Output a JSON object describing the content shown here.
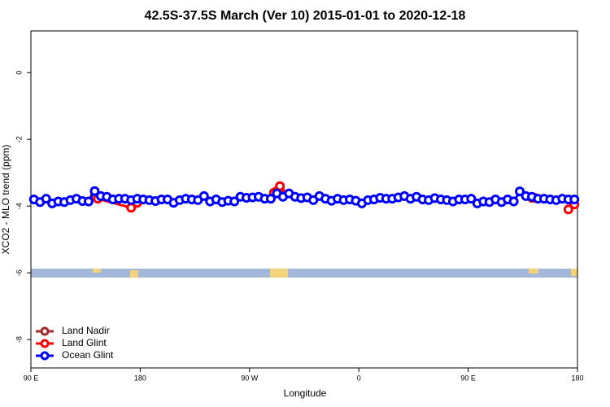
{
  "chart_data": {
    "type": "line",
    "title": "42.5S-37.5S March (Ver 10)   2015-01-01 to 2020-12-18",
    "x_label": "Longitude",
    "y_label": "XCO2 - MLO trend (ppm)",
    "xlim": [
      90,
      540
    ],
    "xticks": [
      {
        "value": 90,
        "label": "90 E"
      },
      180,
      {
        "value": 270,
        "label": "90 W"
      },
      {
        "value": 360,
        "label": "0"
      },
      {
        "value": 450,
        "label": "90 E"
      },
      {
        "value": 540,
        "label": "180"
      }
    ],
    "ylim": [
      -8.85,
      1.25
    ],
    "yticks": [
      0,
      -2,
      -4,
      -6,
      -8
    ],
    "legend": "bottom-left",
    "series": [
      {
        "name": "Land Nadir",
        "color": "#a52a2a",
        "x": [
          292.5,
          295
        ],
        "values": [
          -3.55,
          -3.45
        ]
      },
      {
        "name": "Land Glint",
        "color": "#ff0000",
        "x": [
          142.5,
          145,
          172.5,
          177.5,
          null,
          290,
          292.5,
          295,
          297.5,
          null,
          502.5,
          505,
          null,
          532.5,
          537.5
        ],
        "values": [
          -3.7,
          -3.78,
          -4.05,
          -3.9,
          null,
          -3.6,
          -3.55,
          -3.4,
          -3.65,
          null,
          -3.75,
          -3.75,
          null,
          -4.1,
          -3.95
        ]
      },
      {
        "name": "Ocean Glint",
        "color": "#0000ff",
        "x": [
          92.5,
          97.5,
          102.5,
          107.5,
          112.5,
          117.5,
          122.5,
          127.5,
          132.5,
          137.5,
          142.5,
          147.5,
          152.5,
          157.5,
          162.5,
          167.5,
          172.5,
          177.5,
          182.5,
          187.5,
          192.5,
          197.5,
          202.5,
          207.5,
          212.5,
          217.5,
          222.5,
          227.5,
          232.5,
          237.5,
          242.5,
          247.5,
          252.5,
          257.5,
          262.5,
          267.5,
          272.5,
          277.5,
          282.5,
          287.5,
          292.5,
          297.5,
          302.5,
          307.5,
          312.5,
          317.5,
          322.5,
          327.5,
          332.5,
          337.5,
          342.5,
          347.5,
          352.5,
          357.5,
          362.5,
          367.5,
          372.5,
          377.5,
          382.5,
          387.5,
          392.5,
          397.5,
          402.5,
          407.5,
          412.5,
          417.5,
          422.5,
          427.5,
          432.5,
          437.5,
          442.5,
          447.5,
          452.5,
          457.5,
          462.5,
          467.5,
          472.5,
          477.5,
          482.5,
          487.5,
          492.5,
          497.5,
          502.5,
          507.5,
          512.5,
          517.5,
          522.5,
          527.5,
          532.5,
          537.5
        ],
        "values": [
          -3.8,
          -3.88,
          -3.78,
          -3.92,
          -3.86,
          -3.88,
          -3.82,
          -3.78,
          -3.85,
          -3.86,
          -3.55,
          -3.7,
          -3.72,
          -3.8,
          -3.78,
          -3.78,
          -3.82,
          -3.78,
          -3.8,
          -3.82,
          -3.85,
          -3.8,
          -3.8,
          -3.9,
          -3.82,
          -3.78,
          -3.8,
          -3.82,
          -3.7,
          -3.86,
          -3.8,
          -3.88,
          -3.84,
          -3.86,
          -3.72,
          -3.75,
          -3.74,
          -3.72,
          -3.78,
          -3.78,
          -3.62,
          -3.72,
          -3.62,
          -3.72,
          -3.76,
          -3.74,
          -3.82,
          -3.7,
          -3.78,
          -3.84,
          -3.78,
          -3.82,
          -3.8,
          -3.84,
          -3.92,
          -3.82,
          -3.8,
          -3.75,
          -3.78,
          -3.78,
          -3.74,
          -3.7,
          -3.78,
          -3.72,
          -3.8,
          -3.82,
          -3.76,
          -3.8,
          -3.82,
          -3.86,
          -3.8,
          -3.8,
          -3.78,
          -3.92,
          -3.86,
          -3.88,
          -3.8,
          -3.88,
          -3.8,
          -3.86,
          -3.56,
          -3.7,
          -3.72,
          -3.78,
          -3.78,
          -3.8,
          -3.82,
          -3.78,
          -3.8,
          -3.8
        ]
      }
    ]
  }
}
